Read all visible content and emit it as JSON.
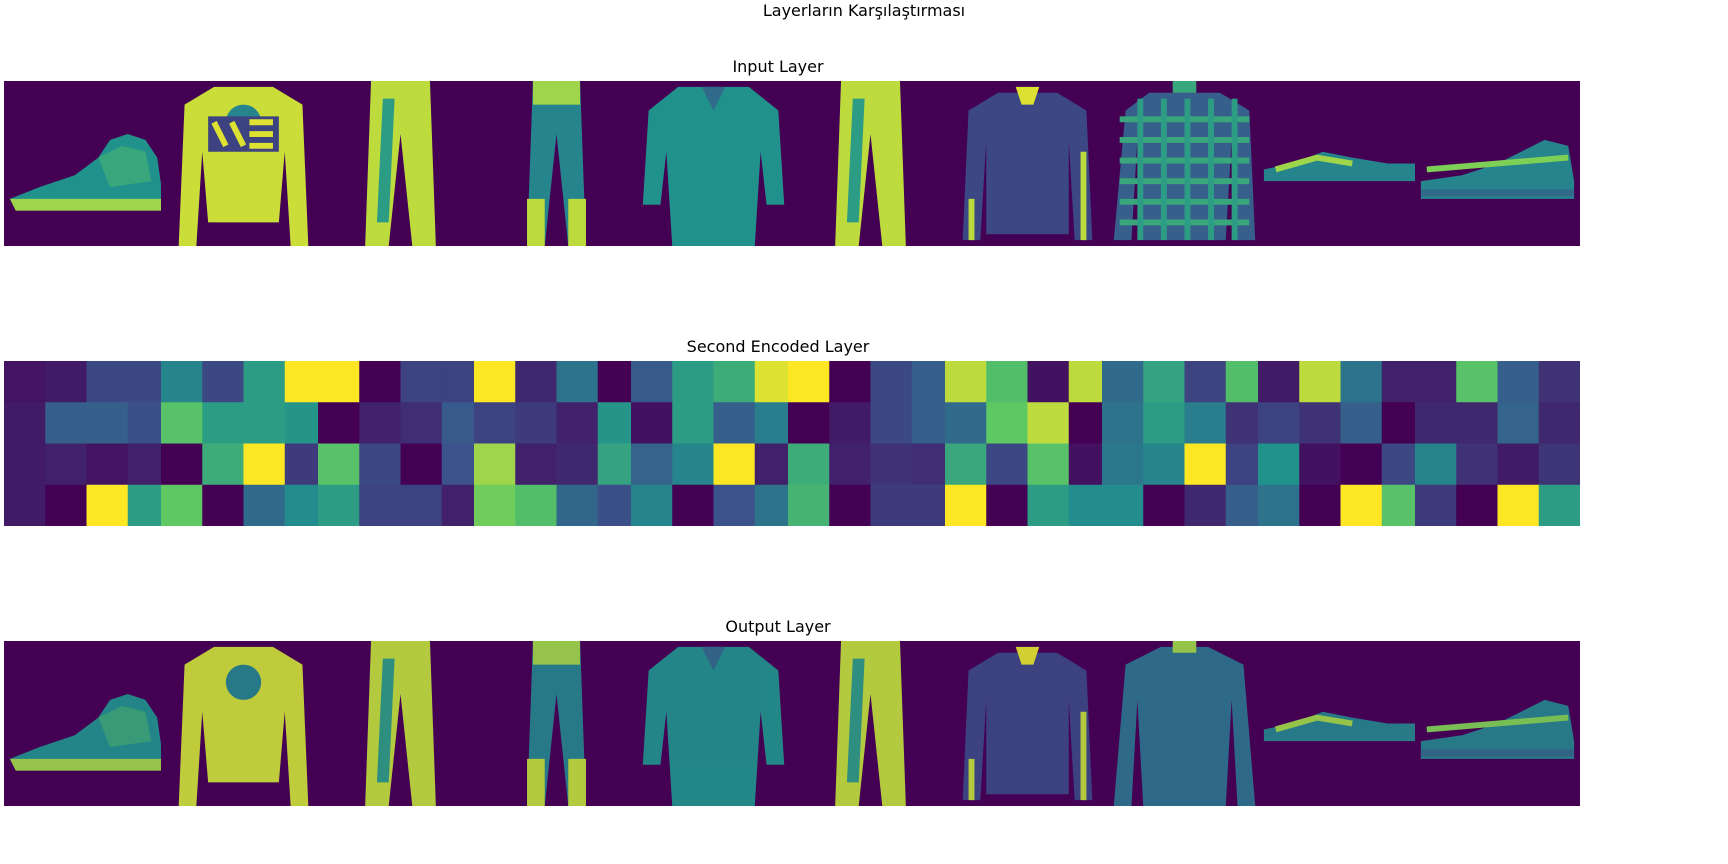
{
  "chart_data": {
    "type": "heatmap",
    "title": "Layerların Karşılaştırması",
    "colormap": "viridis",
    "colors": {
      "background": "#ffffff",
      "viridis_low": "#440154",
      "viridis_mid": "#21918c",
      "viridis_high": "#fde725"
    },
    "rows": [
      {
        "title": "Input Layer",
        "images": [
          {
            "kind": "sneaker"
          },
          {
            "kind": "sweater-print"
          },
          {
            "kind": "trousers"
          },
          {
            "kind": "trousers-thin"
          },
          {
            "kind": "shirt"
          },
          {
            "kind": "trousers"
          },
          {
            "kind": "jacket"
          },
          {
            "kind": "plaid-shirt"
          },
          {
            "kind": "sandal"
          },
          {
            "kind": "sneaker-low"
          }
        ]
      },
      {
        "title": "Second Encoded Layer",
        "grid_size": 4,
        "grids": [
          [
            [
              0.06,
              0.08,
              0.22,
              0.22
            ],
            [
              0.08,
              0.3,
              0.3,
              0.24
            ],
            [
              0.08,
              0.1,
              0.06,
              0.1
            ],
            [
              0.08,
              0.0,
              1.0,
              0.55
            ]
          ],
          [
            [
              0.45,
              0.22,
              0.55,
              1.0
            ],
            [
              0.72,
              0.55,
              0.55,
              0.52
            ],
            [
              0.0,
              0.62,
              1.0,
              0.18
            ],
            [
              0.75,
              0.0,
              0.35,
              0.48
            ]
          ],
          [
            [
              1.0,
              0.0,
              0.2,
              0.2
            ],
            [
              0.0,
              0.1,
              0.14,
              0.28
            ],
            [
              0.72,
              0.22,
              0.0,
              0.25
            ],
            [
              0.55,
              0.2,
              0.2,
              0.1
            ]
          ],
          [
            [
              1.0,
              0.12,
              0.38,
              0.0
            ],
            [
              0.2,
              0.18,
              0.1,
              0.52
            ],
            [
              0.85,
              0.1,
              0.12,
              0.58
            ],
            [
              0.78,
              0.7,
              0.33,
              0.24
            ]
          ],
          [
            [
              0.28,
              0.55,
              0.62,
              0.95
            ],
            [
              0.05,
              0.55,
              0.3,
              0.42
            ],
            [
              0.32,
              0.45,
              1.0,
              0.1
            ],
            [
              0.45,
              0.0,
              0.25,
              0.38
            ]
          ],
          [
            [
              1.0,
              0.0,
              0.22,
              0.3
            ],
            [
              0.0,
              0.08,
              0.22,
              0.3
            ],
            [
              0.62,
              0.1,
              0.15,
              0.14
            ],
            [
              0.65,
              0.0,
              0.18,
              0.18
            ]
          ],
          [
            [
              0.9,
              0.7,
              0.05,
              0.9
            ],
            [
              0.35,
              0.75,
              0.9,
              0.0
            ],
            [
              0.6,
              0.22,
              0.72,
              0.05
            ],
            [
              1.0,
              0.0,
              0.55,
              0.48
            ]
          ],
          [
            [
              0.35,
              0.58,
              0.2,
              0.7
            ],
            [
              0.38,
              0.55,
              0.42,
              0.15
            ],
            [
              0.4,
              0.45,
              1.0,
              0.2
            ],
            [
              0.48,
              0.0,
              0.12,
              0.3
            ]
          ],
          [
            [
              0.08,
              0.9,
              0.38,
              0.1
            ],
            [
              0.2,
              0.15,
              0.3,
              0.0
            ],
            [
              0.5,
              0.05,
              0.0,
              0.22
            ],
            [
              0.38,
              0.0,
              1.0,
              0.72
            ]
          ],
          [
            [
              0.1,
              0.72,
              0.3,
              0.15
            ],
            [
              0.12,
              0.12,
              0.32,
              0.12
            ],
            [
              0.45,
              0.15,
              0.08,
              0.16
            ],
            [
              0.18,
              0.0,
              1.0,
              0.55
            ]
          ]
        ]
      },
      {
        "title": "Output Layer",
        "images": [
          {
            "kind": "sneaker"
          },
          {
            "kind": "sweater"
          },
          {
            "kind": "trousers"
          },
          {
            "kind": "trousers-thin"
          },
          {
            "kind": "shirt"
          },
          {
            "kind": "trousers"
          },
          {
            "kind": "jacket"
          },
          {
            "kind": "shirt-long"
          },
          {
            "kind": "sandal"
          },
          {
            "kind": "sneaker-low"
          }
        ]
      }
    ]
  }
}
